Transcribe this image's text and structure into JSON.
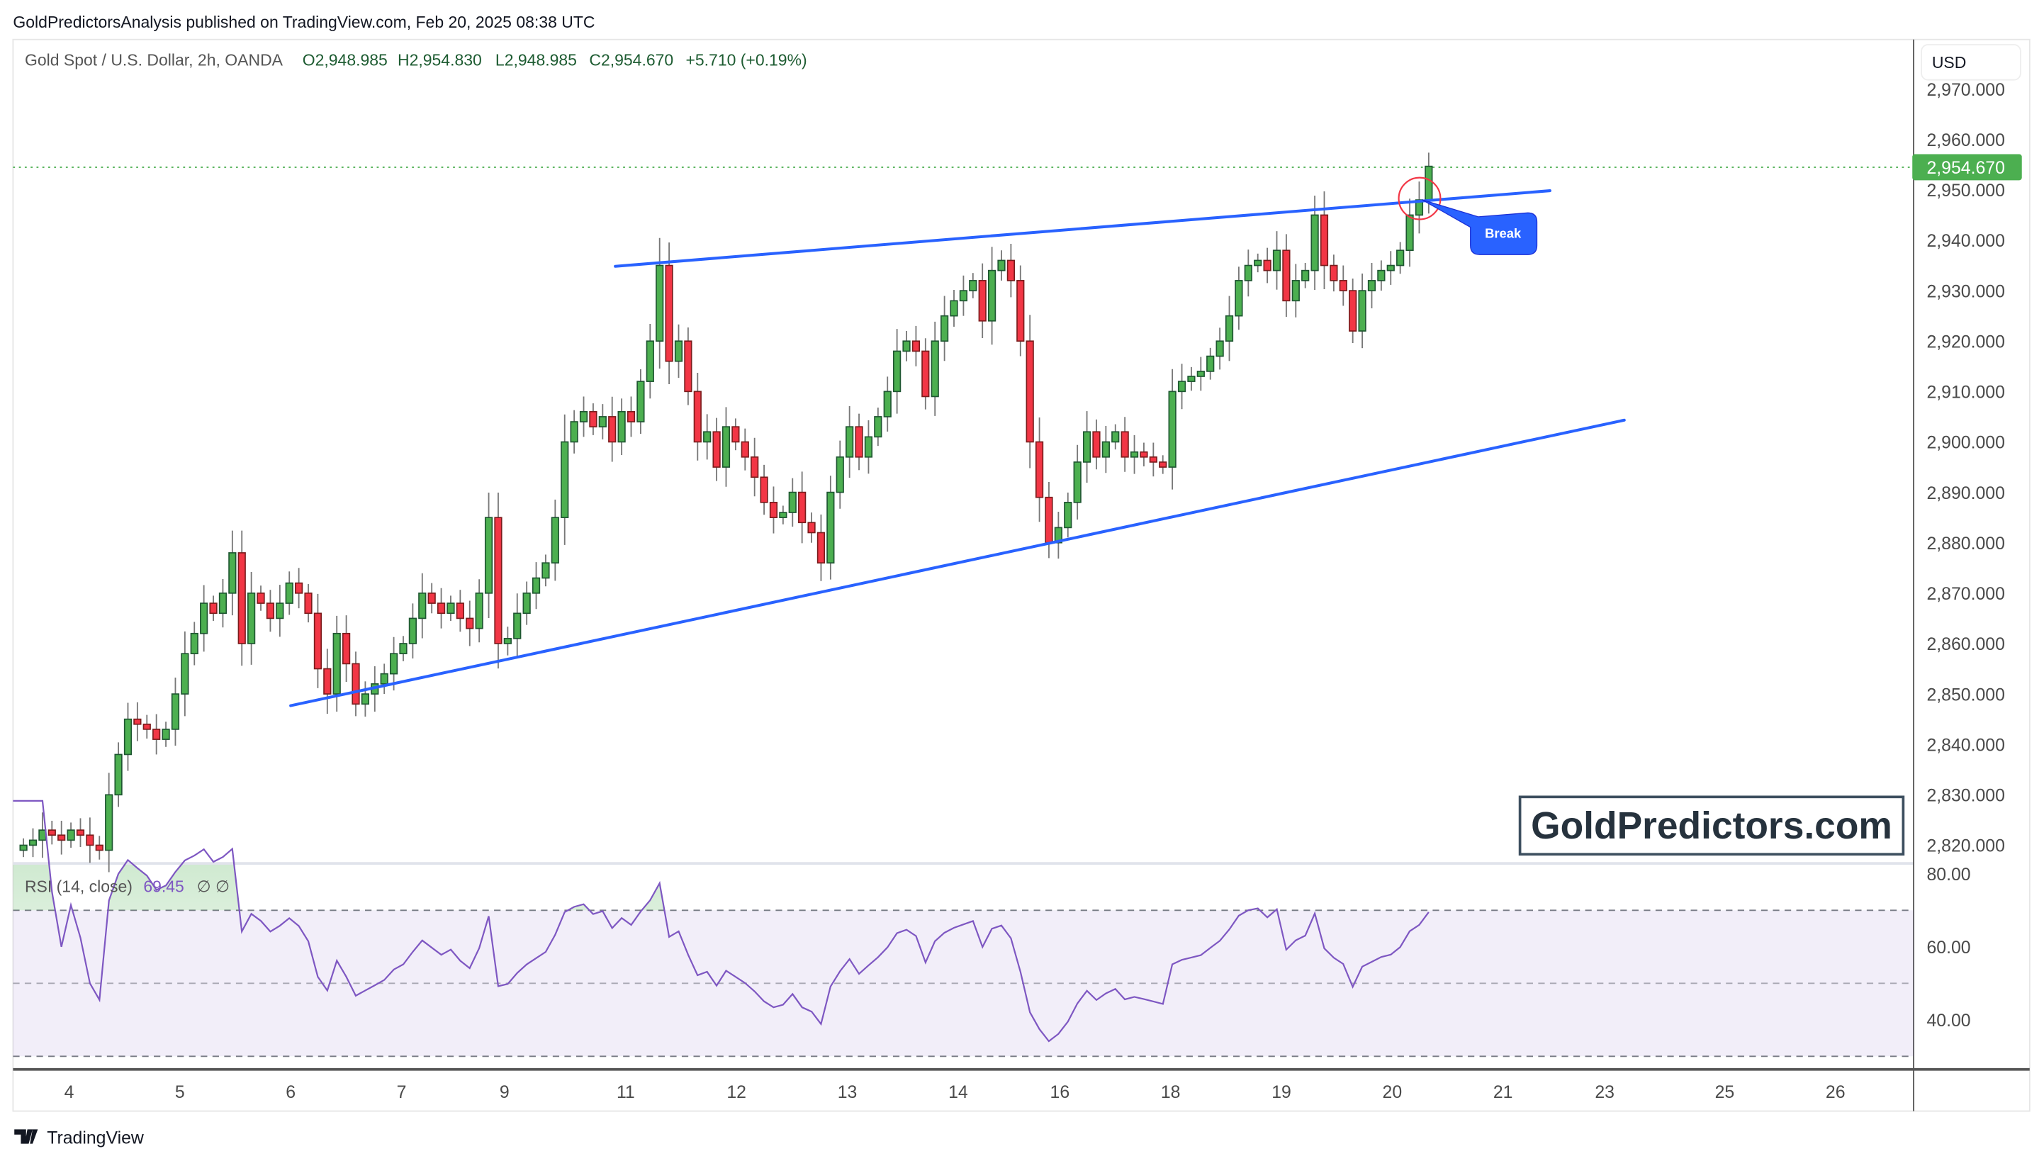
{
  "header": {
    "published_line": "GoldPredictorsAnalysis published on TradingView.com, Feb 20, 2025 08:38 UTC"
  },
  "legend": {
    "symbol": "Gold Spot / U.S. Dollar, 2h, OANDA",
    "open": "O2,948.985",
    "high": "H2,954.830",
    "low": "L2,948.985",
    "close": "C2,954.670",
    "change": "+5.710 (+0.19%)"
  },
  "price_axis": {
    "currency": "USD",
    "current_price_label": "2,954.670"
  },
  "rsi": {
    "label": "RSI (14, close)",
    "value": "69.45",
    "extra": "∅  ∅",
    "ticks": [
      "80.00",
      "60.00",
      "40.00"
    ]
  },
  "annotation": {
    "break_label": "Break"
  },
  "watermark": "GoldPredictors.com",
  "footer": {
    "brand": "TradingView"
  },
  "colors": {
    "up": "#4caf50",
    "up_border": "#1e5631",
    "down": "#f23645",
    "down_border": "#7a1c1c",
    "trendline": "#2962ff",
    "rsi": "#7e57c2",
    "break_circle": "#f23645"
  },
  "chart_data": {
    "type": "candlestick",
    "title": "Gold Spot / U.S. Dollar, 2h, OANDA",
    "ylim": [
      2816,
      2975
    ],
    "y_ticks": [
      2970,
      2960,
      2950,
      2940,
      2930,
      2920,
      2910,
      2900,
      2890,
      2880,
      2870,
      2860,
      2850,
      2840,
      2830,
      2820
    ],
    "y_tick_labels": [
      "2,970.000",
      "2,960.000",
      "2,950.000",
      "2,940.000",
      "2,930.000",
      "2,920.000",
      "2,910.000",
      "2,900.000",
      "2,890.000",
      "2,880.000",
      "2,870.000",
      "2,860.000",
      "2,850.000",
      "2,840.000",
      "2,830.000",
      "2,820.000"
    ],
    "x_tick_labels": [
      "4",
      "5",
      "6",
      "7",
      "9",
      "11",
      "12",
      "13",
      "14",
      "16",
      "18",
      "19",
      "20",
      "21",
      "23",
      "25",
      "26"
    ],
    "first_open": 2819,
    "close": [
      2820,
      2821,
      2823,
      2822,
      2821,
      2823,
      2822,
      2820,
      2819,
      2830,
      2838,
      2845,
      2844,
      2843,
      2841,
      2843,
      2850,
      2858,
      2862,
      2868,
      2866,
      2870,
      2878,
      2860,
      2870,
      2868,
      2865,
      2868,
      2872,
      2870,
      2866,
      2855,
      2850,
      2862,
      2856,
      2848,
      2850,
      2852,
      2854,
      2858,
      2860,
      2865,
      2870,
      2868,
      2866,
      2868,
      2865,
      2863,
      2870,
      2885,
      2860,
      2861,
      2866,
      2870,
      2873,
      2876,
      2885,
      2900,
      2904,
      2906,
      2903,
      2905,
      2900,
      2906,
      2904,
      2912,
      2920,
      2935,
      2916,
      2920,
      2910,
      2900,
      2902,
      2895,
      2903,
      2900,
      2897,
      2893,
      2888,
      2885,
      2886,
      2890,
      2884,
      2882,
      2876,
      2890,
      2897,
      2903,
      2897,
      2901,
      2905,
      2910,
      2918,
      2920,
      2918,
      2909,
      2920,
      2925,
      2928,
      2930,
      2932,
      2924,
      2934,
      2936,
      2932,
      2920,
      2900,
      2889,
      2880,
      2883,
      2888,
      2896,
      2902,
      2897,
      2900,
      2902,
      2897,
      2898,
      2897,
      2896,
      2895,
      2910,
      2912,
      2913,
      2914,
      2917,
      2920,
      2925,
      2932,
      2935,
      2936,
      2934,
      2938,
      2928,
      2932,
      2934,
      2945,
      2935,
      2932,
      2930,
      2922,
      2930,
      2932,
      2934,
      2935,
      2938,
      2945,
      2948,
      2954.67
    ],
    "rsi_period": 14,
    "rsi_levels": [
      70,
      50,
      30
    ],
    "rsi_ylim": [
      28,
      83
    ]
  }
}
